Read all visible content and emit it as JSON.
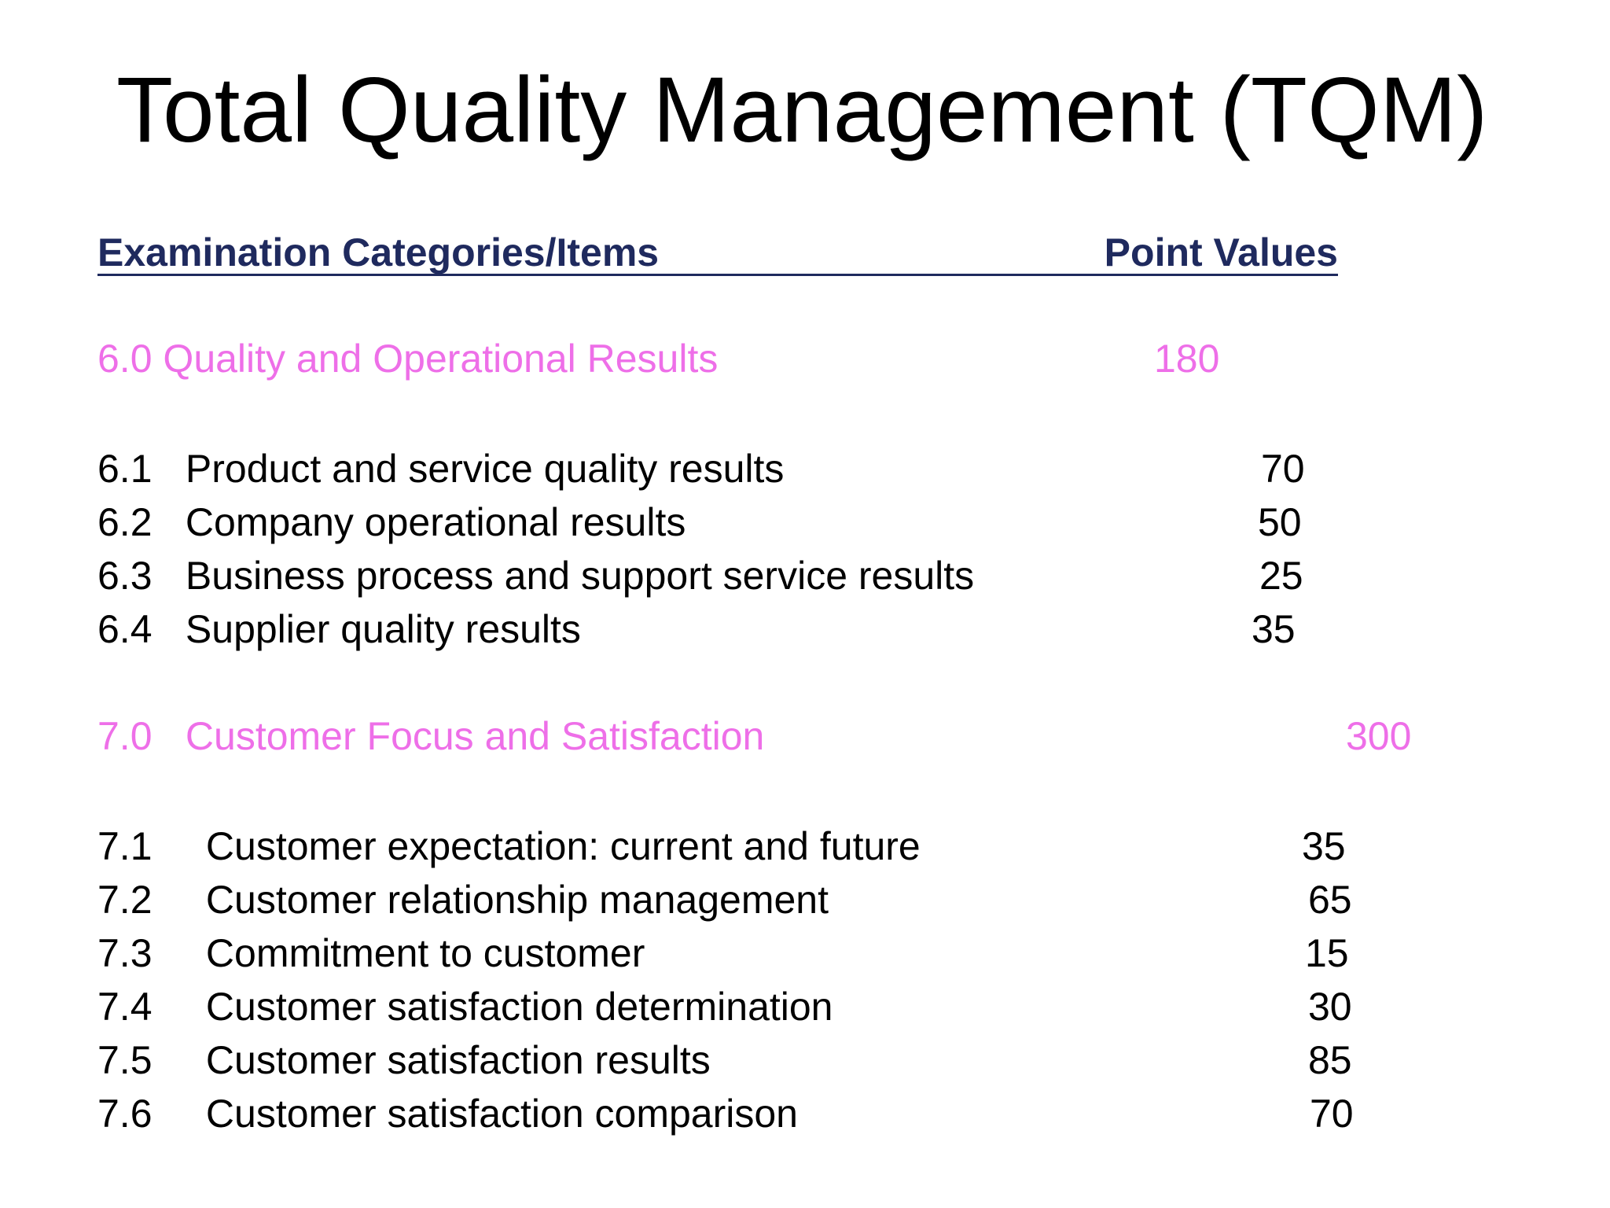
{
  "title": "Total Quality Management (TQM)",
  "header": {
    "categories_label": "Examination Categories/Items",
    "points_label": "Point Values"
  },
  "sections": [
    {
      "number": "6.0",
      "label": "Quality and Operational Results",
      "points": "180",
      "items": [
        {
          "number": "6.1",
          "label": "Product and service quality results",
          "points": "70"
        },
        {
          "number": "6.2",
          "label": "Company operational results",
          "points": "50"
        },
        {
          "number": "6.3",
          "label": "Business process and support service results",
          "points": "25"
        },
        {
          "number": "6.4",
          "label": "Supplier quality results",
          "points": "35"
        }
      ]
    },
    {
      "number": "7.0",
      "label": "Customer Focus and Satisfaction",
      "points": "300",
      "items": [
        {
          "number": "7.1",
          "label": "Customer expectation: current and future",
          "points": "35"
        },
        {
          "number": "7.2",
          "label": "Customer relationship management",
          "points": "65"
        },
        {
          "number": "7.3",
          "label": "Commitment to customer",
          "points": "15"
        },
        {
          "number": "7.4",
          "label": "Customer satisfaction determination",
          "points": "30"
        },
        {
          "number": "7.5",
          "label": "Customer satisfaction results",
          "points": "85"
        },
        {
          "number": "7.6",
          "label": "Customer satisfaction comparison",
          "points": "70"
        }
      ]
    }
  ],
  "colors": {
    "section_text": "#ee6fe8",
    "header_text": "#1f2a5e",
    "body_text": "#000000"
  }
}
